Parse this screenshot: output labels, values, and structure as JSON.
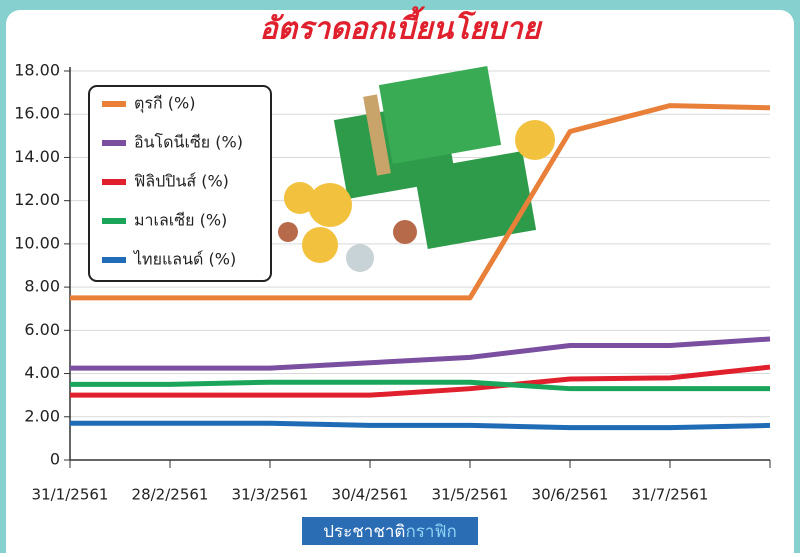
{
  "chart_data": {
    "type": "line",
    "title": "อัตราดอกเบี้ยนโยบาย",
    "source": [
      "ประชาชาติ",
      "กราฟิก"
    ],
    "categories": [
      "31/1/2561",
      "28/2/2561",
      "31/3/2561",
      "30/4/2561",
      "31/5/2561",
      "30/6/2561",
      "31/7/2561",
      null
    ],
    "series": [
      {
        "name": "ตุรกี (%)",
        "color": "#e8803a",
        "values": [
          7.5,
          7.5,
          7.5,
          7.5,
          7.5,
          15.2,
          16.4,
          16.3
        ]
      },
      {
        "name": "อินโดนีเซีย (%)",
        "color": "#7b4fa0",
        "values": [
          4.25,
          4.25,
          4.25,
          4.5,
          4.75,
          5.3,
          5.3,
          5.6
        ]
      },
      {
        "name": "ฟิลิปปินส์ (%)",
        "color": "#e0202c",
        "values": [
          3.0,
          3.0,
          3.0,
          3.0,
          3.3,
          3.75,
          3.8,
          4.3
        ]
      },
      {
        "name": "มาเลเซีย (%)",
        "color": "#1aa55a",
        "values": [
          3.5,
          3.5,
          3.6,
          3.6,
          3.6,
          3.3,
          3.3,
          3.3
        ]
      },
      {
        "name": "ไทยแลนด์ (%)",
        "color": "#1f6bb5",
        "values": [
          1.7,
          1.7,
          1.7,
          1.6,
          1.6,
          1.5,
          1.5,
          1.6
        ]
      }
    ],
    "ylim": [
      0,
      18
    ],
    "yticks": [
      0,
      {
        "value": 2,
        "label": "2.00"
      },
      {
        "value": 4,
        "label": "4.00"
      },
      {
        "value": 6,
        "label": "6.00"
      },
      {
        "value": 8,
        "label": "8.00"
      },
      {
        "value": 10,
        "label": "10.00"
      },
      {
        "value": 12,
        "label": "12.00"
      },
      {
        "value": 14,
        "label": "14.00"
      },
      {
        "value": 16,
        "label": "16.00"
      },
      {
        "value": 18,
        "label": "18.00"
      }
    ],
    "grid": true
  }
}
